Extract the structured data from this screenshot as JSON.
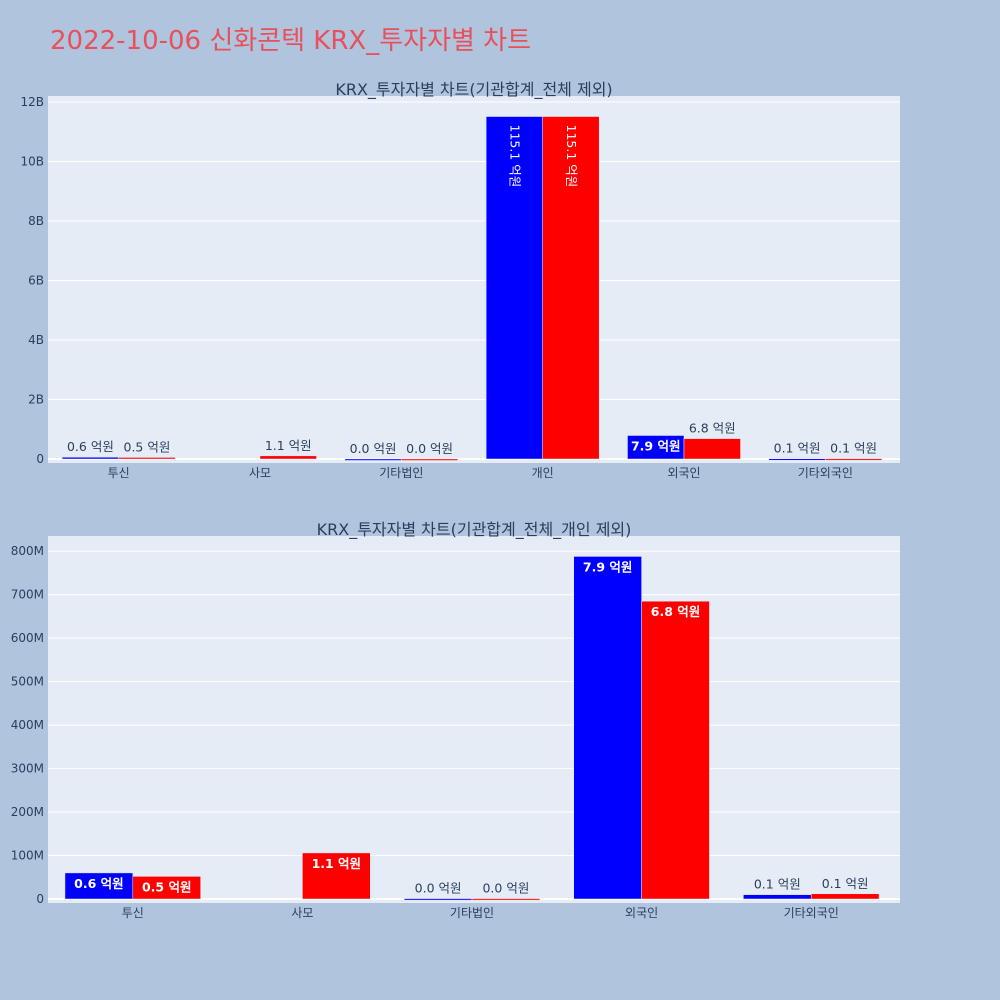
{
  "page": {
    "title": "2022-10-06 신화콘텍 KRX_투자자별 차트",
    "title_color": "#e8505b",
    "background": "#b0c4de",
    "plot_background": "#e5ecf6",
    "text_color": "#2a3f5f"
  },
  "chart_data": [
    {
      "type": "bar",
      "title": "KRX_투자자별 차트(기관합계_전체 제외)",
      "xlabel": "",
      "ylabel": "",
      "categories": [
        "투신",
        "사모",
        "기타법인",
        "개인",
        "외국인",
        "기타외국인"
      ],
      "ylim": [
        0,
        12200000000
      ],
      "y_ticks": [
        0,
        2000000000,
        4000000000,
        6000000000,
        8000000000,
        10000000000,
        12000000000
      ],
      "y_tick_labels": [
        "0",
        "2B",
        "4B",
        "6B",
        "8B",
        "10B",
        "12B"
      ],
      "grid": true,
      "series": [
        {
          "color": "#0000ff",
          "values": [
            60000000,
            0,
            1000000,
            11510000000,
            790000000,
            10000000
          ],
          "labels": [
            "0.6 억원",
            "",
            "0.0 억원",
            "115.1 억원",
            "7.9 억원",
            "0.1 억원"
          ],
          "label_pos": [
            "outside",
            "outside",
            "outside",
            "inside-rotated",
            "inside",
            "outside"
          ]
        },
        {
          "color": "#ff0000",
          "values": [
            52000000,
            106000000,
            1000000,
            11510000000,
            685000000,
            12000000
          ],
          "labels": [
            "0.5 억원",
            "1.1 억원",
            "0.0 억원",
            "115.1 억원",
            "6.8 억원",
            "0.1 억원"
          ],
          "label_pos": [
            "outside",
            "outside",
            "outside",
            "inside-rotated",
            "outside",
            "outside"
          ]
        }
      ]
    },
    {
      "type": "bar",
      "title": "KRX_투자자별 차트(기관합계_전체_개인 제외)",
      "xlabel": "",
      "ylabel": "",
      "categories": [
        "투신",
        "사모",
        "기타법인",
        "외국인",
        "기타외국인"
      ],
      "ylim": [
        0,
        835000000
      ],
      "y_ticks": [
        0,
        100000000,
        200000000,
        300000000,
        400000000,
        500000000,
        600000000,
        700000000,
        800000000
      ],
      "y_tick_labels": [
        "0",
        "100M",
        "200M",
        "300M",
        "400M",
        "500M",
        "600M",
        "700M",
        "800M"
      ],
      "grid": true,
      "series": [
        {
          "color": "#0000ff",
          "values": [
            60000000,
            0,
            1000000,
            788000000,
            10000000
          ],
          "labels": [
            "0.6 억원",
            "",
            "0.0 억원",
            "7.9 억원",
            "0.1 억원"
          ],
          "label_pos": [
            "inside",
            "outside",
            "outside",
            "inside",
            "outside"
          ]
        },
        {
          "color": "#ff0000",
          "values": [
            52000000,
            106000000,
            1000000,
            685000000,
            12000000
          ],
          "labels": [
            "0.5 억원",
            "1.1 억원",
            "0.0 억원",
            "6.8 억원",
            "0.1 억원"
          ],
          "label_pos": [
            "inside",
            "inside",
            "outside",
            "inside",
            "outside"
          ]
        }
      ]
    }
  ]
}
